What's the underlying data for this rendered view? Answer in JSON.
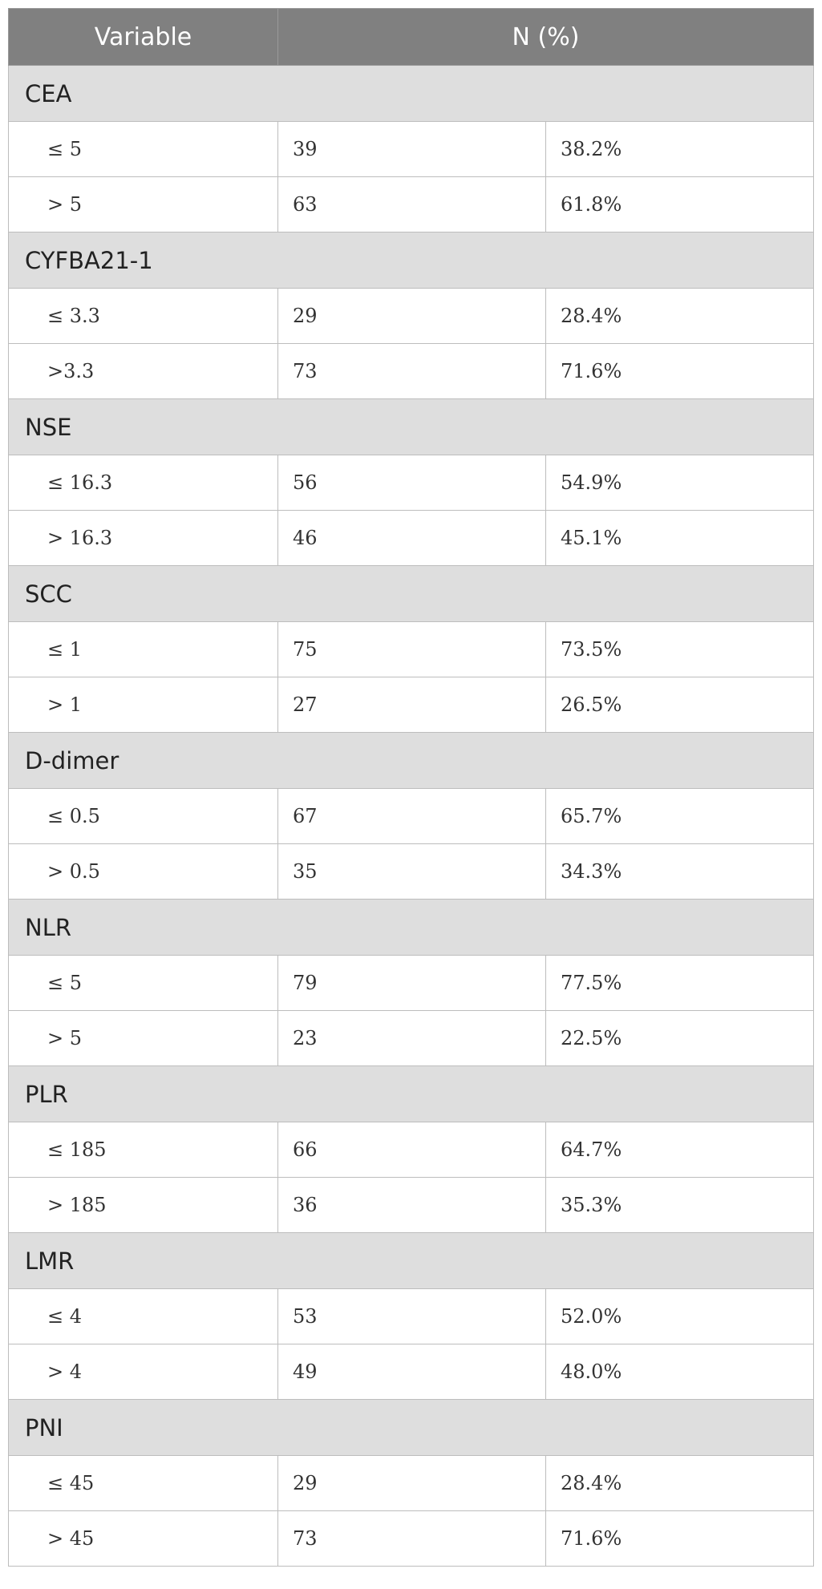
{
  "header": {
    "variable": "Variable",
    "n_pct": "N (%)"
  },
  "groups": [
    {
      "name": "CEA",
      "rows": [
        {
          "category": "≤ 5",
          "n": "39",
          "pct": "38.2%"
        },
        {
          "category": "> 5",
          "n": "63",
          "pct": "61.8%"
        }
      ]
    },
    {
      "name": "CYFBA21-1",
      "rows": [
        {
          "category": "≤ 3.3",
          "n": "29",
          "pct": "28.4%"
        },
        {
          "category": ">3.3",
          "n": "73",
          "pct": "71.6%"
        }
      ]
    },
    {
      "name": "NSE",
      "rows": [
        {
          "category": "≤ 16.3",
          "n": "56",
          "pct": "54.9%"
        },
        {
          "category": "> 16.3",
          "n": "46",
          "pct": "45.1%"
        }
      ]
    },
    {
      "name": "SCC",
      "rows": [
        {
          "category": "≤ 1",
          "n": "75",
          "pct": "73.5%"
        },
        {
          "category": "> 1",
          "n": "27",
          "pct": "26.5%"
        }
      ]
    },
    {
      "name": "D-dimer",
      "rows": [
        {
          "category": "≤ 0.5",
          "n": "67",
          "pct": "65.7%"
        },
        {
          "category": "> 0.5",
          "n": "35",
          "pct": "34.3%"
        }
      ]
    },
    {
      "name": "NLR",
      "rows": [
        {
          "category": "≤ 5",
          "n": "79",
          "pct": "77.5%"
        },
        {
          "category": "> 5",
          "n": "23",
          "pct": "22.5%"
        }
      ]
    },
    {
      "name": "PLR",
      "rows": [
        {
          "category": "≤ 185",
          "n": "66",
          "pct": "64.7%"
        },
        {
          "category": "> 185",
          "n": "36",
          "pct": "35.3%"
        }
      ]
    },
    {
      "name": "LMR",
      "rows": [
        {
          "category": "≤ 4",
          "n": "53",
          "pct": "52.0%"
        },
        {
          "category": "> 4",
          "n": "49",
          "pct": "48.0%"
        }
      ]
    },
    {
      "name": "PNI",
      "rows": [
        {
          "category": "≤ 45",
          "n": "29",
          "pct": "28.4%"
        },
        {
          "category": "> 45",
          "n": "73",
          "pct": "71.6%"
        }
      ]
    }
  ]
}
